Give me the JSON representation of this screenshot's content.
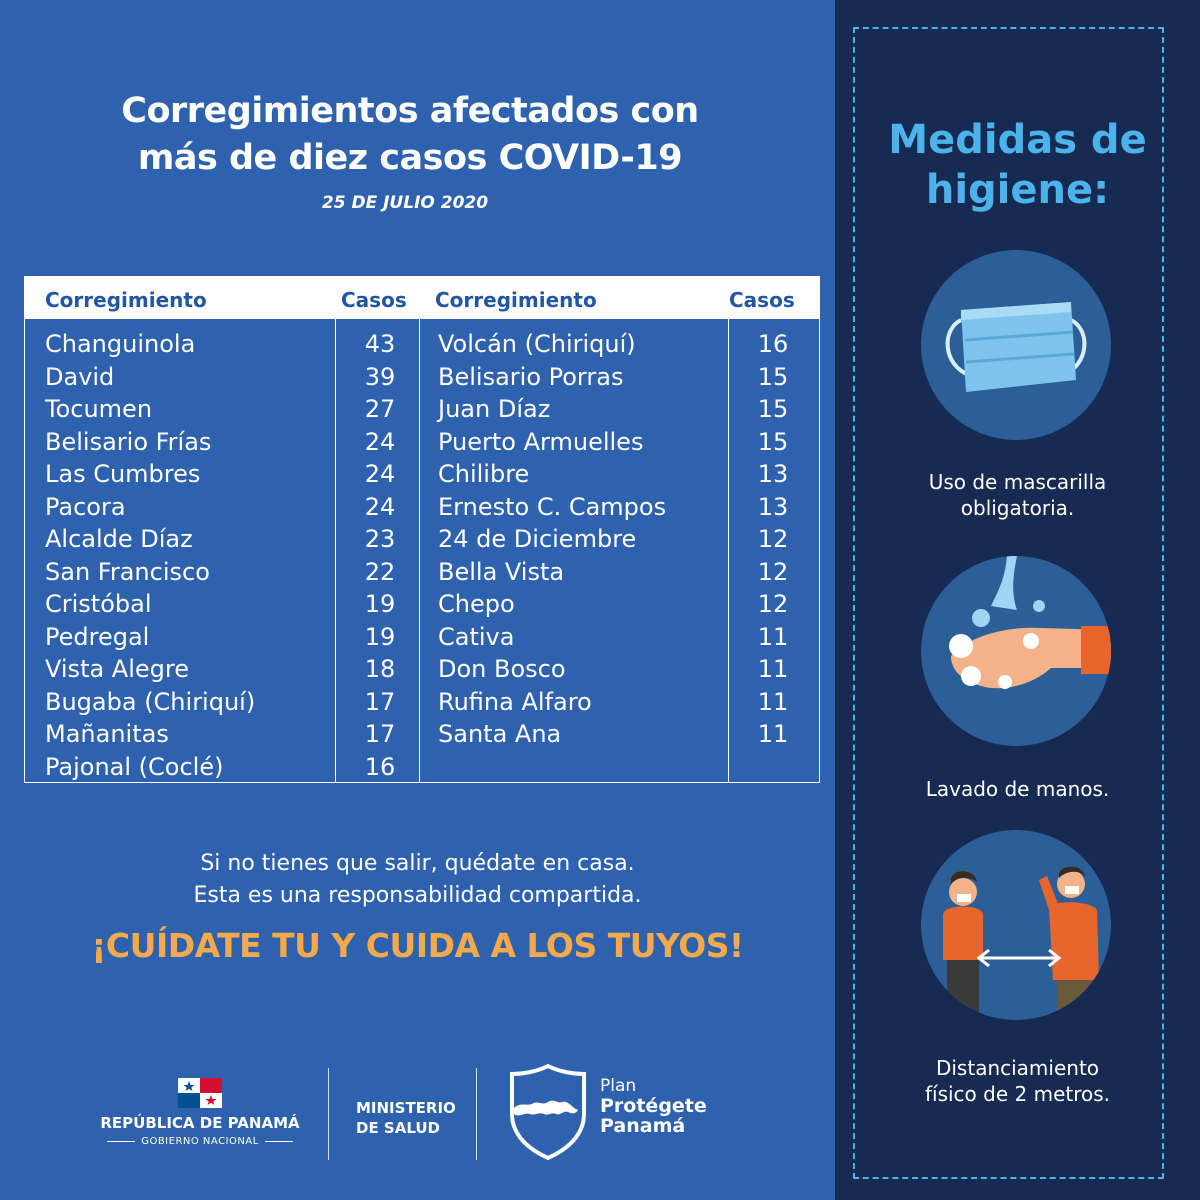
{
  "header": {
    "title_line1": "Corregimientos afectados con",
    "title_line2": "más de diez casos COVID-19",
    "date": "25 DE JULIO 2020"
  },
  "table": {
    "headers": [
      "Corregimiento",
      "Casos",
      "Corregimiento",
      "Casos"
    ],
    "left_rows": [
      {
        "name": "Changuinola",
        "cases": "43"
      },
      {
        "name": "David",
        "cases": "39"
      },
      {
        "name": "Tocumen",
        "cases": "27"
      },
      {
        "name": "Belisario Frías",
        "cases": "24"
      },
      {
        "name": "Las Cumbres",
        "cases": "24"
      },
      {
        "name": "Pacora",
        "cases": "24"
      },
      {
        "name": "Alcalde Díaz",
        "cases": "23"
      },
      {
        "name": "San Francisco",
        "cases": "22"
      },
      {
        "name": "Cristóbal",
        "cases": "19"
      },
      {
        "name": "Pedregal",
        "cases": "19"
      },
      {
        "name": "Vista Alegre",
        "cases": "18"
      },
      {
        "name": "Bugaba (Chiriquí)",
        "cases": "17"
      },
      {
        "name": "Mañanitas",
        "cases": "17"
      },
      {
        "name": "Pajonal (Coclé)",
        "cases": "16"
      }
    ],
    "right_rows": [
      {
        "name": "Volcán (Chiriquí)",
        "cases": "16"
      },
      {
        "name": "Belisario Porras",
        "cases": "15"
      },
      {
        "name": "Juan Díaz",
        "cases": "15"
      },
      {
        "name": "Puerto Armuelles",
        "cases": "15"
      },
      {
        "name": "Chilibre",
        "cases": "13"
      },
      {
        "name": "Ernesto C. Campos",
        "cases": "13"
      },
      {
        "name": "24 de Diciembre",
        "cases": "12"
      },
      {
        "name": "Bella Vista",
        "cases": "12"
      },
      {
        "name": "Chepo",
        "cases": "12"
      },
      {
        "name": "Cativa",
        "cases": "11"
      },
      {
        "name": "Don Bosco",
        "cases": "11"
      },
      {
        "name": "Rufina Alfaro",
        "cases": "11"
      },
      {
        "name": "Santa Ana",
        "cases": "11"
      }
    ]
  },
  "message": {
    "line1": "Si no tienes que salir, quédate en casa.",
    "line2": "Esta es una responsabilidad compartida.",
    "slogan": "¡CUÍDATE TU Y CUIDA A LOS TUYOS!"
  },
  "footer": {
    "republic": "REPÚBLICA DE PANAMÁ",
    "government": "GOBIERNO NACIONAL",
    "ministry_line1": "MINISTERIO",
    "ministry_line2": "DE SALUD",
    "plan_line1": "Plan",
    "plan_line2": "Protégete",
    "plan_line3": "Panamá"
  },
  "measures": {
    "title_line1": "Medidas de",
    "title_line2": "higiene:",
    "items": [
      {
        "icon": "face-mask-icon",
        "line1": "Uso de mascarilla",
        "line2": "obligatoria."
      },
      {
        "icon": "hand-washing-icon",
        "line1": "Lavado de manos.",
        "line2": ""
      },
      {
        "icon": "social-distancing-icon",
        "line1": "Distanciamiento",
        "line2": "físico de 2 metros."
      }
    ]
  },
  "colors": {
    "background": "#2f62ae",
    "panel": "#172a52",
    "accent_blue": "#4bb3ea",
    "accent_orange": "#f5a94a"
  }
}
